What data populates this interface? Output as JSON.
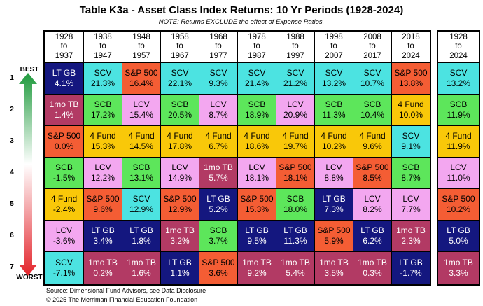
{
  "title": "Table K3a - Asset Class Index Returns: 10 Yr Periods (1928-2024)",
  "note": "NOTE: Returns EXCLUDE the effect of Expense Ratios.",
  "best_label": "BEST",
  "worst_label": "WORST",
  "ranks": [
    "1",
    "2",
    "3",
    "4",
    "5",
    "6",
    "7"
  ],
  "footer": {
    "source": "Source: Dimensional Fund Advisors, see Data Disclosure",
    "copyright": "© 2025 The Merriman Financial Education Foundation"
  },
  "colors": {
    "LT GB": "#14177f",
    "SCV": "#4ce3e1",
    "S&P 500": "#f45d34",
    "1mo TB": "#b23a64",
    "LCV": "#f3a7f0",
    "SCB": "#5de65b",
    "4 Fund": "#f9c809"
  },
  "chart_data": {
    "type": "table",
    "title": "Table K3a - Asset Class Index Returns: 10 Yr Periods (1928-2024)",
    "periods": [
      {
        "start": "1928",
        "to": "to",
        "end": "1937"
      },
      {
        "start": "1938",
        "to": "to",
        "end": "1947"
      },
      {
        "start": "1948",
        "to": "to",
        "end": "1957"
      },
      {
        "start": "1958",
        "to": "to",
        "end": "1967"
      },
      {
        "start": "1968",
        "to": "to",
        "end": "1977"
      },
      {
        "start": "1978",
        "to": "to",
        "end": "1987"
      },
      {
        "start": "1988",
        "to": "to",
        "end": "1997"
      },
      {
        "start": "1998",
        "to": "to",
        "end": "2007"
      },
      {
        "start": "2008",
        "to": "to",
        "end": "2017"
      },
      {
        "start": "2018",
        "to": "to",
        "end": "2024"
      }
    ],
    "columns": [
      [
        {
          "asset": "LT GB",
          "ret": "4.1%"
        },
        {
          "asset": "1mo TB",
          "ret": "1.4%"
        },
        {
          "asset": "S&P 500",
          "ret": "0.0%"
        },
        {
          "asset": "SCB",
          "ret": "-1.5%"
        },
        {
          "asset": "4 Fund",
          "ret": "-2.4%"
        },
        {
          "asset": "LCV",
          "ret": "-3.6%"
        },
        {
          "asset": "SCV",
          "ret": "-7.1%"
        }
      ],
      [
        {
          "asset": "SCV",
          "ret": "21.3%"
        },
        {
          "asset": "SCB",
          "ret": "17.2%"
        },
        {
          "asset": "4 Fund",
          "ret": "15.3%"
        },
        {
          "asset": "LCV",
          "ret": "12.2%"
        },
        {
          "asset": "S&P 500",
          "ret": "9.6%"
        },
        {
          "asset": "LT GB",
          "ret": "3.4%"
        },
        {
          "asset": "1mo TB",
          "ret": "0.2%"
        }
      ],
      [
        {
          "asset": "S&P 500",
          "ret": "16.4%"
        },
        {
          "asset": "LCV",
          "ret": "15.4%"
        },
        {
          "asset": "4 Fund",
          "ret": "14.5%"
        },
        {
          "asset": "SCB",
          "ret": "13.1%"
        },
        {
          "asset": "SCV",
          "ret": "12.9%"
        },
        {
          "asset": "LT GB",
          "ret": "1.8%"
        },
        {
          "asset": "1mo TB",
          "ret": "1.6%"
        }
      ],
      [
        {
          "asset": "SCV",
          "ret": "22.1%"
        },
        {
          "asset": "SCB",
          "ret": "20.5%"
        },
        {
          "asset": "4 Fund",
          "ret": "17.8%"
        },
        {
          "asset": "LCV",
          "ret": "14.9%"
        },
        {
          "asset": "S&P 500",
          "ret": "12.9%"
        },
        {
          "asset": "1mo TB",
          "ret": "3.2%"
        },
        {
          "asset": "LT GB",
          "ret": "1.1%"
        }
      ],
      [
        {
          "asset": "SCV",
          "ret": "9.3%"
        },
        {
          "asset": "LCV",
          "ret": "8.7%"
        },
        {
          "asset": "4 Fund",
          "ret": "6.7%"
        },
        {
          "asset": "1mo TB",
          "ret": "5.7%"
        },
        {
          "asset": "LT GB",
          "ret": "5.2%"
        },
        {
          "asset": "SCB",
          "ret": "3.7%"
        },
        {
          "asset": "S&P 500",
          "ret": "3.6%"
        }
      ],
      [
        {
          "asset": "SCV",
          "ret": "21.4%"
        },
        {
          "asset": "SCB",
          "ret": "18.9%"
        },
        {
          "asset": "4 Fund",
          "ret": "18.6%"
        },
        {
          "asset": "LCV",
          "ret": "18.1%"
        },
        {
          "asset": "S&P 500",
          "ret": "15.3%"
        },
        {
          "asset": "LT GB",
          "ret": "9.5%"
        },
        {
          "asset": "1mo TB",
          "ret": "9.2%"
        }
      ],
      [
        {
          "asset": "SCV",
          "ret": "21.2%"
        },
        {
          "asset": "LCV",
          "ret": "20.9%"
        },
        {
          "asset": "4 Fund",
          "ret": "19.7%"
        },
        {
          "asset": "S&P 500",
          "ret": "18.1%"
        },
        {
          "asset": "SCB",
          "ret": "18.0%"
        },
        {
          "asset": "LT GB",
          "ret": "11.3%"
        },
        {
          "asset": "1mo TB",
          "ret": "5.4%"
        }
      ],
      [
        {
          "asset": "SCV",
          "ret": "13.2%"
        },
        {
          "asset": "SCB",
          "ret": "11.3%"
        },
        {
          "asset": "4 Fund",
          "ret": "10.2%"
        },
        {
          "asset": "LCV",
          "ret": "8.8%"
        },
        {
          "asset": "LT GB",
          "ret": "7.3%"
        },
        {
          "asset": "S&P 500",
          "ret": "5.9%"
        },
        {
          "asset": "1mo TB",
          "ret": "3.5%"
        }
      ],
      [
        {
          "asset": "SCV",
          "ret": "10.7%"
        },
        {
          "asset": "SCB",
          "ret": "10.4%"
        },
        {
          "asset": "4 Fund",
          "ret": "9.6%"
        },
        {
          "asset": "S&P 500",
          "ret": "8.5%"
        },
        {
          "asset": "LCV",
          "ret": "8.2%"
        },
        {
          "asset": "LT GB",
          "ret": "6.2%"
        },
        {
          "asset": "1mo TB",
          "ret": "0.3%"
        }
      ],
      [
        {
          "asset": "S&P 500",
          "ret": "13.8%"
        },
        {
          "asset": "4 Fund",
          "ret": "10.0%"
        },
        {
          "asset": "SCV",
          "ret": "9.1%"
        },
        {
          "asset": "SCB",
          "ret": "8.7%"
        },
        {
          "asset": "LCV",
          "ret": "7.7%"
        },
        {
          "asset": "1mo TB",
          "ret": "2.3%"
        },
        {
          "asset": "LT GB",
          "ret": "-1.7%"
        }
      ]
    ],
    "total_period": {
      "start": "1928",
      "to": "to",
      "end": "2024"
    },
    "total_column": [
      {
        "asset": "SCV",
        "ret": "13.2%"
      },
      {
        "asset": "SCB",
        "ret": "11.9%"
      },
      {
        "asset": "4 Fund",
        "ret": "11.9%"
      },
      {
        "asset": "LCV",
        "ret": "11.0%"
      },
      {
        "asset": "S&P 500",
        "ret": "10.2%"
      },
      {
        "asset": "LT GB",
        "ret": "5.0%"
      },
      {
        "asset": "1mo TB",
        "ret": "3.3%"
      }
    ]
  }
}
